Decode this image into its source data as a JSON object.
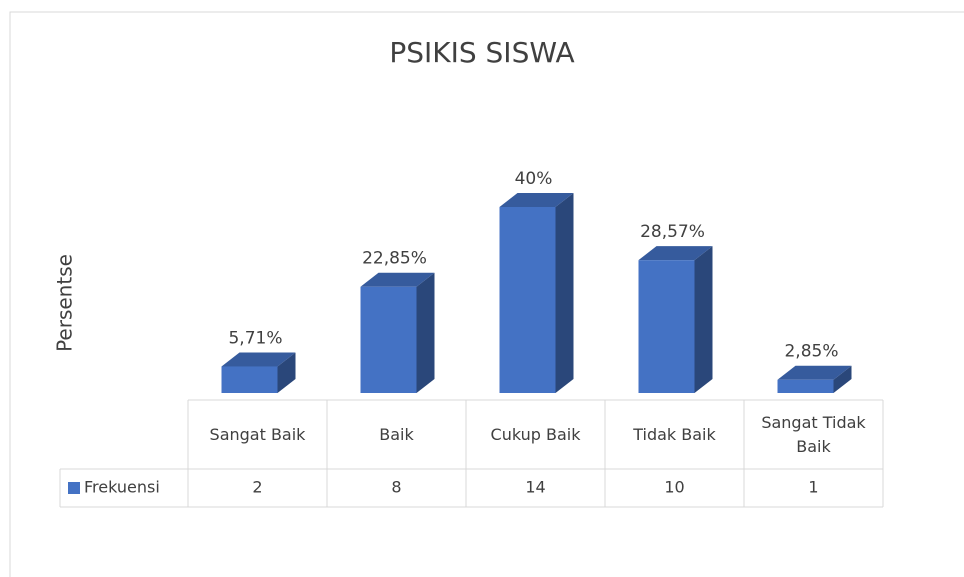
{
  "chart_data": {
    "type": "bar3d",
    "title": "PSIKIS SISWA",
    "y_label": "Persentse",
    "categories": [
      "Sangat Baik",
      "Baik",
      "Cukup Baik",
      "Tidak Baik",
      "Sangat Tidak Baik"
    ],
    "values": [
      5.71,
      22.85,
      40,
      28.57,
      2.85
    ],
    "value_labels": [
      "5,71%",
      "22,85%",
      "40%",
      "28,57%",
      "2,85%"
    ],
    "color": "#4472c4",
    "table_rows": [
      {
        "name": "Frekuensi",
        "color": "#4472c4",
        "values": [
          2,
          8,
          14,
          10,
          1
        ]
      }
    ]
  }
}
